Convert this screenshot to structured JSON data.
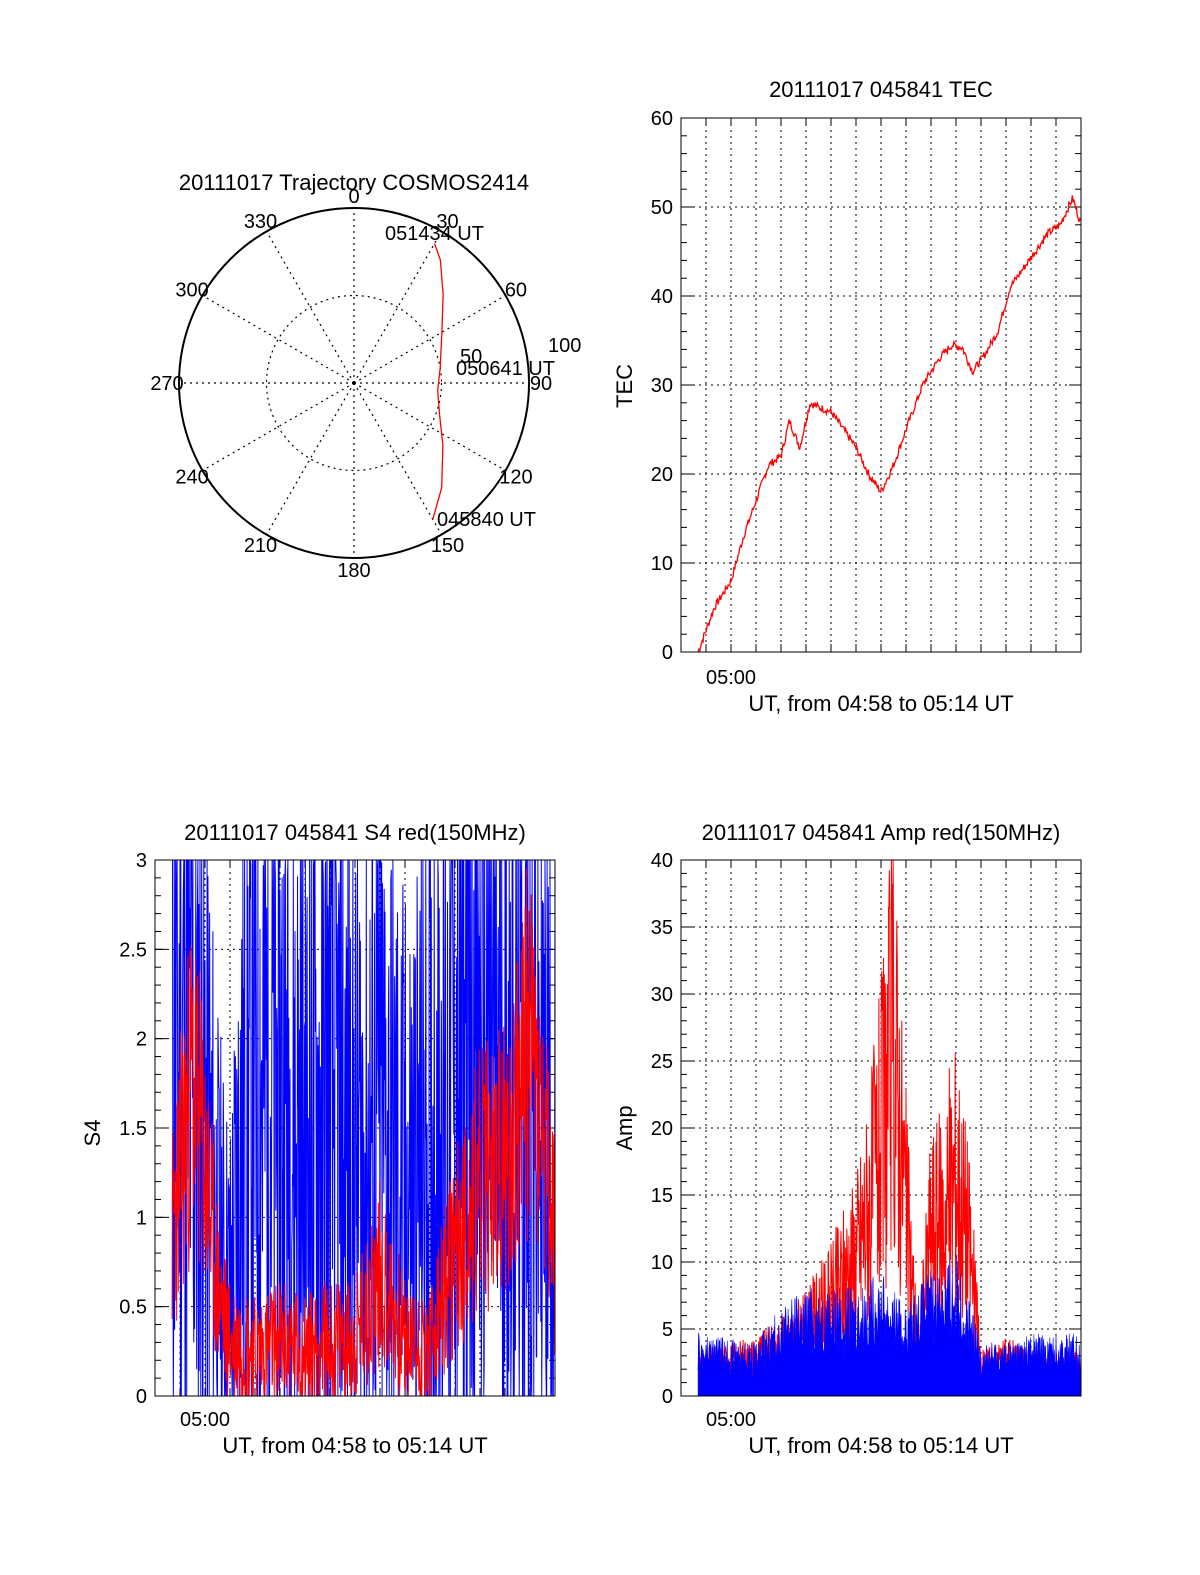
{
  "chart_data": [
    {
      "type": "polar",
      "title": "20111017 Trajectory COSMOS2414",
      "azimuth_labels": [
        "0",
        "30",
        "60",
        "90",
        "120",
        "150",
        "180",
        "210",
        "240",
        "270",
        "300",
        "330"
      ],
      "radial_labels": [
        "100",
        "50"
      ],
      "ring_values": [
        0,
        50,
        100
      ],
      "rlim": [
        100,
        0
      ],
      "grid": true,
      "colors": {
        "trajectory": "#ff0000"
      },
      "series": [
        {
          "azimuth": [
            150,
            140,
            125,
            110,
            95,
            80,
            60,
            45,
            35,
            30
          ],
          "elevation": [
            10,
            22,
            38,
            48,
            52,
            50,
            42,
            28,
            14,
            8
          ]
        }
      ],
      "annotations": [
        "051434 UT",
        "050641 UT",
        "045840 UT"
      ]
    },
    {
      "type": "line",
      "title": "20111017 045841 TEC",
      "xlabel": "UT, from 04:58 to 05:14 UT",
      "ylabel": "TEC",
      "x_tick_labels": [
        "05:00"
      ],
      "xlim": [
        "04:58",
        "05:14"
      ],
      "ylim": [
        0,
        60
      ],
      "y_ticks": [
        "0",
        "10",
        "20",
        "30",
        "40",
        "50",
        "60"
      ],
      "grid": true,
      "colors": {
        "tec": "#ff0000"
      },
      "series": [
        {
          "x": [
            "04:58:41",
            "04:59:20",
            "05:00:00",
            "05:00:30",
            "05:01:00",
            "05:01:30",
            "05:02:00",
            "05:02:20",
            "05:02:45",
            "05:03:10",
            "05:03:30",
            "05:04:00",
            "05:04:30",
            "05:05:00",
            "05:05:30",
            "05:06:00",
            "05:06:30",
            "05:07:00",
            "05:07:40",
            "05:08:20",
            "05:08:50",
            "05:09:15",
            "05:09:40",
            "05:10:10",
            "05:10:40",
            "05:11:10",
            "05:11:40",
            "05:12:10",
            "05:12:40",
            "05:13:10",
            "05:13:40",
            "05:14:00"
          ],
          "y": [
            0,
            5,
            8,
            13,
            17,
            21,
            22,
            26,
            23,
            28,
            27.5,
            27,
            25,
            23,
            20,
            18,
            21,
            25,
            30,
            33,
            34.5,
            34.2,
            31.5,
            33.5,
            36,
            41,
            43,
            45,
            47,
            48,
            51,
            48
          ]
        }
      ]
    },
    {
      "type": "line",
      "title": "20111017 045841 S4 red(150MHz)",
      "xlabel": "UT, from 04:58 to 05:14 UT",
      "ylabel": "S4",
      "x_tick_labels": [
        "05:00"
      ],
      "xlim": [
        "04:58",
        "05:14"
      ],
      "ylim": [
        0,
        3
      ],
      "y_ticks": [
        "0",
        "0.5",
        "1",
        "1.5",
        "2",
        "2.5",
        "3"
      ],
      "grid": true,
      "colors": {
        "red": "#ff0000",
        "blue": "#0000ff"
      },
      "series": [
        {
          "color": "#0000ff",
          "x": [
            "04:58:41",
            "04:59:30",
            "05:00:00",
            "05:00:30",
            "05:01:00",
            "05:01:30",
            "05:02:00",
            "05:03:00",
            "05:04:00",
            "05:05:00",
            "05:06:00",
            "05:07:00",
            "05:08:00",
            "05:09:00",
            "05:10:00",
            "05:11:00",
            "05:12:00",
            "05:13:00",
            "05:14:00"
          ],
          "y": [
            2.2,
            1.8,
            1.6,
            0.8,
            0.5,
            1.5,
            1.9,
            1.7,
            1.4,
            1.6,
            1.3,
            1.5,
            1.1,
            1.4,
            1.9,
            2.0,
            1.8,
            1.7,
            1.3
          ]
        },
        {
          "color": "#ff0000",
          "x": [
            "04:58:41",
            "04:59:30",
            "05:00:00",
            "05:00:30",
            "05:01:00",
            "05:01:30",
            "05:02:00",
            "05:03:00",
            "05:04:00",
            "05:05:00",
            "05:06:00",
            "05:07:00",
            "05:08:00",
            "05:09:00",
            "05:10:00",
            "05:11:00",
            "05:12:00",
            "05:13:00",
            "05:14:00"
          ],
          "y": [
            0.9,
            1.8,
            1.3,
            0.6,
            0.3,
            0.3,
            0.25,
            0.3,
            0.25,
            0.3,
            0.3,
            0.7,
            0.3,
            0.25,
            0.8,
            1.2,
            1.3,
            2.0,
            0.8
          ]
        }
      ]
    },
    {
      "type": "area",
      "title": "20111017 045841 Amp red(150MHz)",
      "xlabel": "UT, from 04:58 to 05:14 UT",
      "ylabel": "Amp",
      "x_tick_labels": [
        "05:00"
      ],
      "xlim": [
        "04:58",
        "05:14"
      ],
      "ylim": [
        0,
        40
      ],
      "y_ticks": [
        "0",
        "5",
        "10",
        "15",
        "20",
        "25",
        "30",
        "35",
        "40"
      ],
      "grid": true,
      "colors": {
        "red": "#ff0000",
        "blue": "#0000ff"
      },
      "series": [
        {
          "color": "#ff0000",
          "x": [
            "04:58:41",
            "05:01:00",
            "05:02:00",
            "05:03:00",
            "05:04:00",
            "05:05:00",
            "05:05:30",
            "05:06:00",
            "05:06:30",
            "05:07:00",
            "05:07:30",
            "05:08:00",
            "05:08:30",
            "05:09:00",
            "05:09:30",
            "05:10:00",
            "05:11:00",
            "05:12:00",
            "05:14:00"
          ],
          "y": [
            3,
            4,
            5,
            7,
            10,
            15,
            20,
            27,
            38,
            20,
            4,
            18,
            19,
            24,
            17,
            3,
            4,
            3,
            3
          ]
        },
        {
          "color": "#0000ff",
          "x": [
            "04:58:41",
            "05:00:00",
            "05:01:00",
            "05:02:00",
            "05:03:00",
            "05:04:00",
            "05:05:00",
            "05:06:00",
            "05:07:00",
            "05:08:00",
            "05:09:00",
            "05:10:00",
            "05:11:00",
            "05:12:00",
            "05:13:00",
            "05:14:00"
          ],
          "y": [
            3.5,
            3.2,
            3.0,
            5.0,
            6.0,
            6.0,
            6.0,
            7.0,
            5.0,
            7.0,
            8.0,
            3.0,
            3.0,
            3.5,
            3.5,
            3.5
          ]
        }
      ]
    }
  ]
}
